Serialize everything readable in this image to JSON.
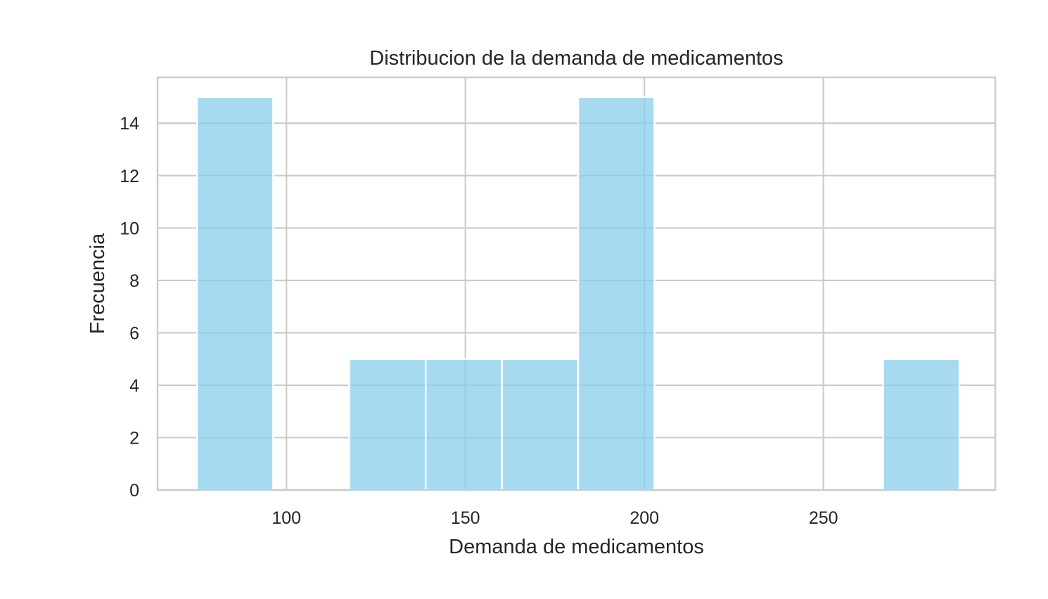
{
  "chart_data": {
    "type": "bar",
    "subtype": "histogram",
    "title": "Distribucion de la demanda de medicamentos",
    "xlabel": "Demanda de medicamentos",
    "ylabel": "Frecuencia",
    "xlim": [
      64,
      298
    ],
    "ylim": [
      0,
      15.75
    ],
    "x_ticks": [
      100,
      150,
      200,
      250
    ],
    "y_ticks": [
      0,
      2,
      4,
      6,
      8,
      10,
      12,
      14
    ],
    "bin_edges": [
      75,
      96.3,
      117.6,
      138.9,
      160.2,
      181.5,
      202.8,
      224.1,
      245.4,
      266.7,
      288
    ],
    "values": [
      15,
      0,
      5,
      5,
      5,
      15,
      0,
      0,
      0,
      5
    ],
    "grid": true,
    "bar_color": "#87ceeb",
    "bar_opacity": 0.75,
    "grid_color": "#cccccc",
    "background": "#ffffff"
  }
}
